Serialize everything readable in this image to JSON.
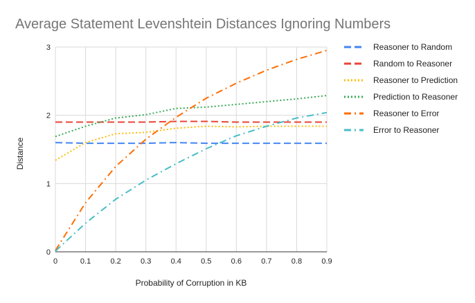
{
  "chart_data": {
    "type": "line",
    "title": "Average Statement Levenshtein Distances Ignoring Numbers",
    "xlabel": "Probability of Corruption in KB",
    "ylabel": "Distance",
    "xlim": [
      0,
      0.9
    ],
    "ylim": [
      0,
      3
    ],
    "x_ticks": [
      "0",
      "0.1",
      "0.2",
      "0.3",
      "0.4",
      "0.5",
      "0.6",
      "0.7",
      "0.8",
      "0.9"
    ],
    "y_ticks": [
      "0",
      "1",
      "2",
      "3"
    ],
    "grid": true,
    "legend_position": "right",
    "x": [
      0,
      0.1,
      0.2,
      0.3,
      0.4,
      0.5,
      0.6,
      0.7,
      0.8,
      0.9
    ],
    "series": [
      {
        "name": "Reasoner to Random",
        "color": "#4285F4",
        "dash": "long-dash",
        "values": [
          1.6,
          1.59,
          1.59,
          1.59,
          1.6,
          1.59,
          1.59,
          1.59,
          1.59,
          1.59
        ]
      },
      {
        "name": "Random to Reasoner",
        "color": "#EA4335",
        "dash": "long-dash",
        "values": [
          1.9,
          1.9,
          1.9,
          1.9,
          1.91,
          1.91,
          1.9,
          1.9,
          1.9,
          1.9
        ]
      },
      {
        "name": "Reasoner to Prediction",
        "color": "#FBBC04",
        "dash": "dot",
        "values": [
          1.34,
          1.6,
          1.73,
          1.75,
          1.81,
          1.84,
          1.83,
          1.84,
          1.84,
          1.84
        ]
      },
      {
        "name": "Prediction to Reasoner",
        "color": "#34A853",
        "dash": "dot",
        "values": [
          1.69,
          1.84,
          1.96,
          2.01,
          2.1,
          2.12,
          2.16,
          2.2,
          2.24,
          2.29
        ]
      },
      {
        "name": "Reasoner to Error",
        "color": "#FF6D01",
        "dash": "dash-dot",
        "values": [
          0.02,
          0.72,
          1.25,
          1.65,
          1.97,
          2.25,
          2.47,
          2.66,
          2.82,
          2.95
        ]
      },
      {
        "name": "Error to Reasoner",
        "color": "#46BDC6",
        "dash": "dash-dot",
        "values": [
          0.01,
          0.42,
          0.77,
          1.05,
          1.29,
          1.51,
          1.7,
          1.84,
          1.96,
          2.04
        ]
      }
    ]
  }
}
